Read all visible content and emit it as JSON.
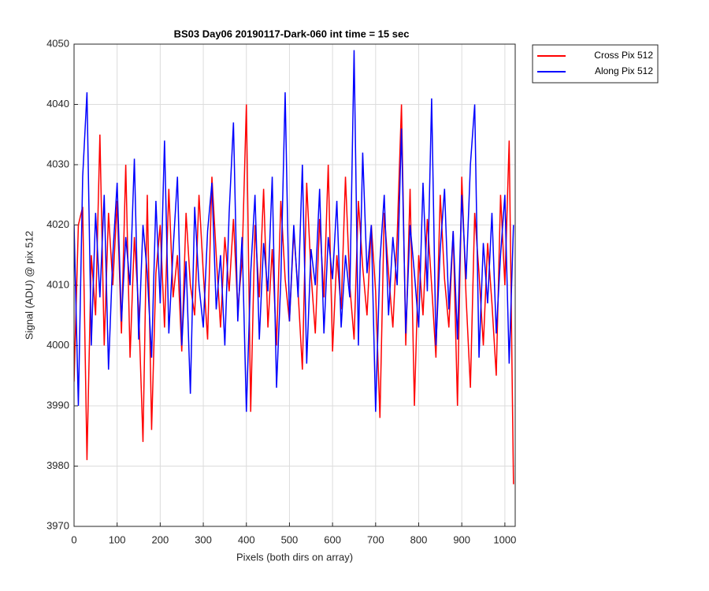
{
  "chart_data": {
    "type": "line",
    "title": "BS03 Day06 20190117-Dark-060 int time = 15 sec",
    "xlabel": "Pixels (both dirs on array)",
    "ylabel": "Signal (ADU) @ pix 512",
    "x": [
      0,
      10,
      20,
      30,
      40,
      50,
      60,
      70,
      80,
      90,
      100,
      110,
      120,
      130,
      140,
      150,
      160,
      170,
      180,
      190,
      200,
      210,
      220,
      230,
      240,
      250,
      260,
      270,
      280,
      290,
      300,
      310,
      320,
      330,
      340,
      350,
      360,
      370,
      380,
      390,
      400,
      410,
      420,
      430,
      440,
      450,
      460,
      470,
      480,
      490,
      500,
      510,
      520,
      530,
      540,
      550,
      560,
      570,
      580,
      590,
      600,
      610,
      620,
      630,
      640,
      650,
      660,
      670,
      680,
      690,
      700,
      710,
      720,
      730,
      740,
      750,
      760,
      770,
      780,
      790,
      800,
      810,
      820,
      830,
      840,
      850,
      860,
      870,
      880,
      890,
      900,
      910,
      920,
      930,
      940,
      950,
      960,
      970,
      980,
      990,
      1000,
      1010,
      1020
    ],
    "series": [
      {
        "name": "Cross Pix 512",
        "color": "#ff0000",
        "values": [
          3994,
          4020,
          4023,
          3981,
          4015,
          4005,
          4035,
          4000,
          4022,
          4010,
          4024,
          4002,
          4030,
          3998,
          4018,
          4006,
          3984,
          4025,
          3986,
          4012,
          4020,
          4003,
          4026,
          4008,
          4015,
          3999,
          4022,
          4010,
          4005,
          4025,
          4012,
          4001,
          4028,
          4015,
          4003,
          4018,
          4009,
          4021,
          4006,
          4014,
          4040,
          3989,
          4020,
          4008,
          4026,
          4003,
          4016,
          4000,
          4024,
          4011,
          4004,
          4019,
          4009,
          3996,
          4027,
          4012,
          4002,
          4021,
          4008,
          4030,
          3999,
          4015,
          4006,
          4028,
          4010,
          4001,
          4024,
          4013,
          4005,
          4020,
          4009,
          3988,
          4022,
          4012,
          4003,
          4018,
          4040,
          4000,
          4026,
          3990,
          4015,
          4005,
          4021,
          4010,
          3998,
          4025,
          4011,
          4003,
          4019,
          3990,
          4028,
          4008,
          3993,
          4022,
          4012,
          4000,
          4017,
          4007,
          3995,
          4025,
          4010,
          4034,
          3977
        ]
      },
      {
        "name": "Along Pix 512",
        "color": "#0000ff",
        "values": [
          4020,
          3990,
          4028,
          4042,
          4000,
          4022,
          4008,
          4025,
          3996,
          4015,
          4027,
          4004,
          4018,
          4010,
          4031,
          4001,
          4020,
          4012,
          3998,
          4024,
          4007,
          4034,
          4002,
          4016,
          4028,
          4000,
          4014,
          3992,
          4023,
          4010,
          4003,
          4019,
          4027,
          4006,
          4015,
          4000,
          4022,
          4037,
          4004,
          4018,
          3989,
          4012,
          4025,
          4001,
          4017,
          4009,
          4028,
          3993,
          4011,
          4042,
          4004,
          4020,
          4008,
          4030,
          3997,
          4016,
          4010,
          4026,
          4002,
          4018,
          4011,
          4024,
          4003,
          4015,
          4008,
          4049,
          4000,
          4032,
          4012,
          4020,
          3989,
          4014,
          4025,
          4005,
          4018,
          4010,
          4036,
          4002,
          4020,
          4012,
          4003,
          4027,
          4009,
          4041,
          4000,
          4016,
          4026,
          4006,
          4019,
          4001,
          4025,
          4011,
          4030,
          4040,
          3998,
          4017,
          4007,
          4022,
          4002,
          4015,
          4025,
          3997,
          4020
        ]
      }
    ],
    "xlim": [
      0,
      1024
    ],
    "ylim": [
      3970,
      4050
    ],
    "xticks": [
      0,
      100,
      200,
      300,
      400,
      500,
      600,
      700,
      800,
      900,
      1000
    ],
    "yticks": [
      3970,
      3980,
      3990,
      4000,
      4010,
      4020,
      4030,
      4040,
      4050
    ],
    "grid": true,
    "legend": "northeastoutside"
  }
}
